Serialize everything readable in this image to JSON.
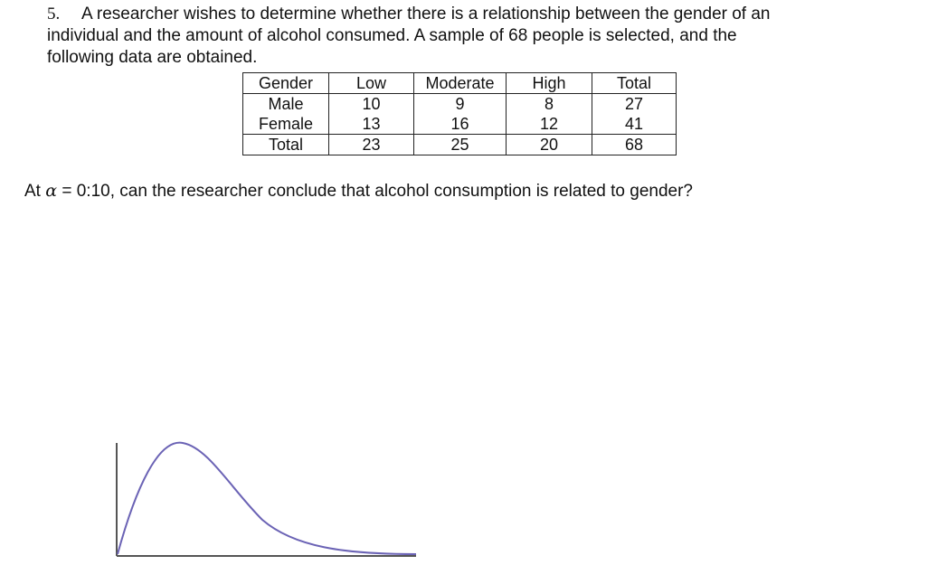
{
  "problem": {
    "number": "5.",
    "line1": "A researcher wishes to determine whether there is a relationship between the gender of an",
    "line2": "individual and the amount of alcohol consumed. A sample of 68 people is selected, and the",
    "line3": "following data are obtained."
  },
  "table": {
    "headers": [
      "Gender",
      "Low",
      "Moderate",
      "High",
      "Total"
    ],
    "rows": [
      [
        "Male",
        "10",
        "9",
        "8",
        "27"
      ],
      [
        "Female",
        "13",
        "16",
        "12",
        "41"
      ],
      [
        "Total",
        "23",
        "25",
        "20",
        "68"
      ]
    ]
  },
  "question": {
    "prefix": "At ",
    "alpha_symbol": "α",
    "suffix": " = 0:10, can the researcher conclude that alcohol consumption is related to gender?"
  },
  "figure": {
    "curve_color": "#6b63b5",
    "axis_color": "#555555"
  }
}
